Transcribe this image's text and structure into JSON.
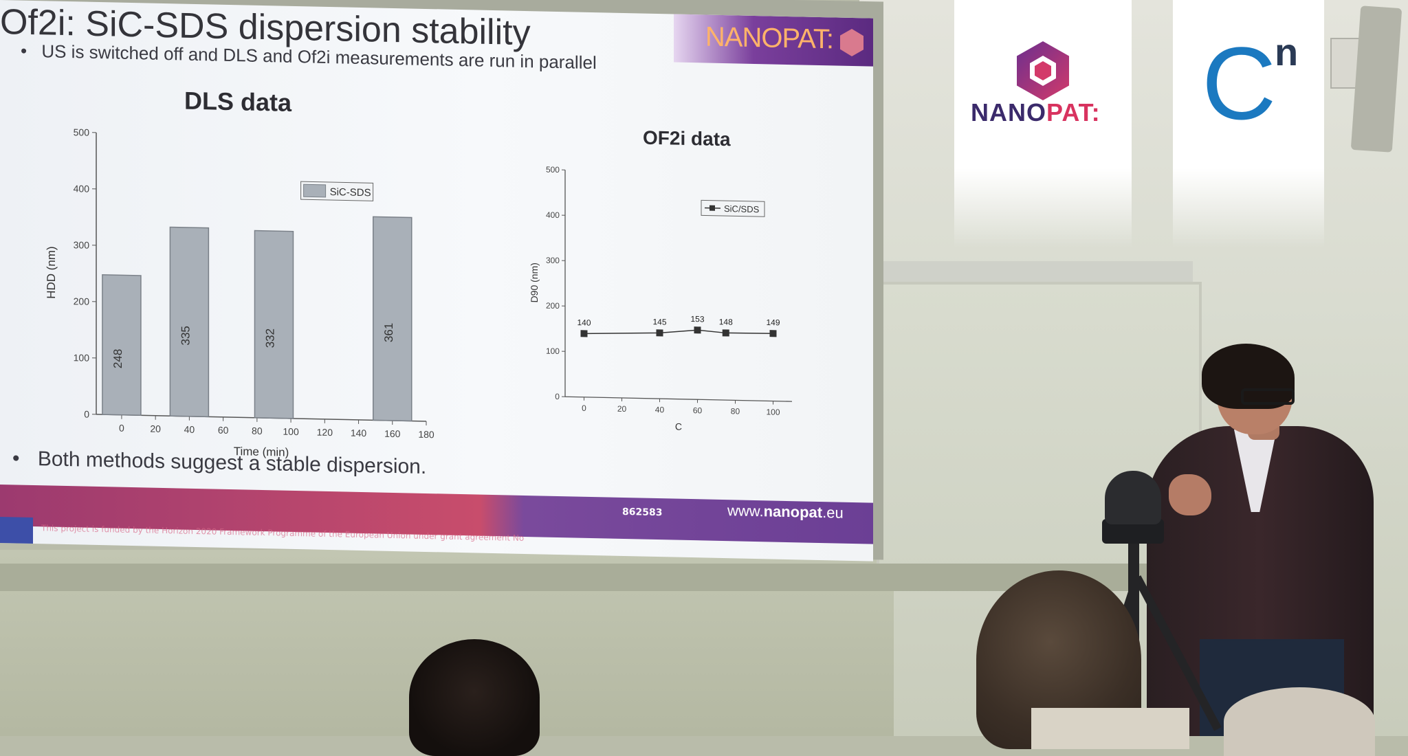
{
  "slide": {
    "title": "Of2i: SiC-SDS dispersion stability",
    "brand": "NANOPAT:",
    "bullet_1": "US is switched off and DLS and Of2i measurements are run in parallel",
    "bullet_2": "Both methods suggest a stable dispersion.",
    "bullet_mark": "•",
    "footer_grant": "862583",
    "footer_url_prefix": "www.",
    "footer_url_bold": "nanopat",
    "footer_url_suffix": ".eu",
    "footer_disclaimer": "This project is funded by the Horizon 2020 Framework Programme of the European Union under grant agreement No"
  },
  "chart_data": [
    {
      "type": "bar",
      "title": "DLS data",
      "xlabel": "Time (min)",
      "ylabel": "HDD (nm)",
      "xlim": [
        -15,
        180
      ],
      "ylim": [
        0,
        500
      ],
      "x_ticks": [
        "0",
        "20",
        "40",
        "60",
        "80",
        "100",
        "120",
        "140",
        "160",
        "180"
      ],
      "y_ticks": [
        "0",
        "100",
        "200",
        "300",
        "400",
        "500"
      ],
      "series": [
        {
          "name": "SiC-SDS",
          "x": [
            0,
            40,
            90,
            160
          ],
          "values": [
            248,
            335,
            332,
            361
          ]
        }
      ],
      "data_labels": [
        "248",
        "335",
        "332",
        "361"
      ],
      "legend_position": "top-right",
      "color": "#a9b0b8"
    },
    {
      "type": "line",
      "title": "OF2i data",
      "xlabel": "C",
      "ylabel": "D90 (nm)",
      "xlim": [
        -10,
        110
      ],
      "ylim": [
        0,
        500
      ],
      "x_ticks": [
        "0",
        "20",
        "40",
        "60",
        "80",
        "100"
      ],
      "y_ticks": [
        "0",
        "100",
        "200",
        "300",
        "400",
        "500"
      ],
      "series": [
        {
          "name": "SiC/SDS",
          "x": [
            0,
            40,
            60,
            75,
            100
          ],
          "values": [
            140,
            145,
            153,
            148,
            149
          ]
        }
      ],
      "data_labels": [
        "140",
        "145",
        "153",
        "148",
        "149"
      ],
      "legend_position": "top-right",
      "color": "#333333"
    }
  ],
  "logos": {
    "nanopat_left": "NANO",
    "nanopat_right": "PAT:",
    "cn_letter": "C",
    "cn_sup": "n"
  },
  "colors": {
    "nanopat_purple": "#3b2a6b",
    "nanopat_pink": "#d8335f",
    "cn_blue": "#1b79c0"
  }
}
